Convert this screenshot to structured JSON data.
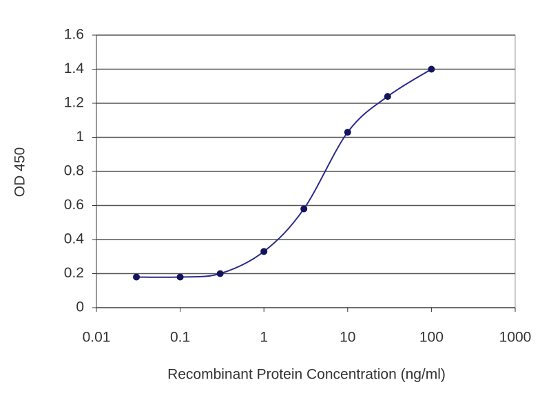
{
  "chart_data": {
    "type": "line",
    "x_label": "Recombinant Protein Concentration (ng/ml)",
    "y_label": "OD 450",
    "x": [
      0.03,
      0.1,
      0.3,
      1,
      3,
      10,
      30,
      100
    ],
    "values": [
      0.18,
      0.18,
      0.2,
      0.33,
      0.58,
      1.03,
      1.24,
      1.4
    ],
    "color": "#2b2b8c",
    "marker_color": "#14145e",
    "xscale": "log",
    "xlim": [
      0.01,
      1000
    ],
    "xticks": [
      0.01,
      0.1,
      1,
      10,
      100,
      1000
    ],
    "ylim": [
      0,
      1.6
    ],
    "yticks": [
      0,
      0.2,
      0.4,
      0.6,
      0.8,
      1,
      1.2,
      1.4,
      1.6
    ],
    "grid": true
  }
}
